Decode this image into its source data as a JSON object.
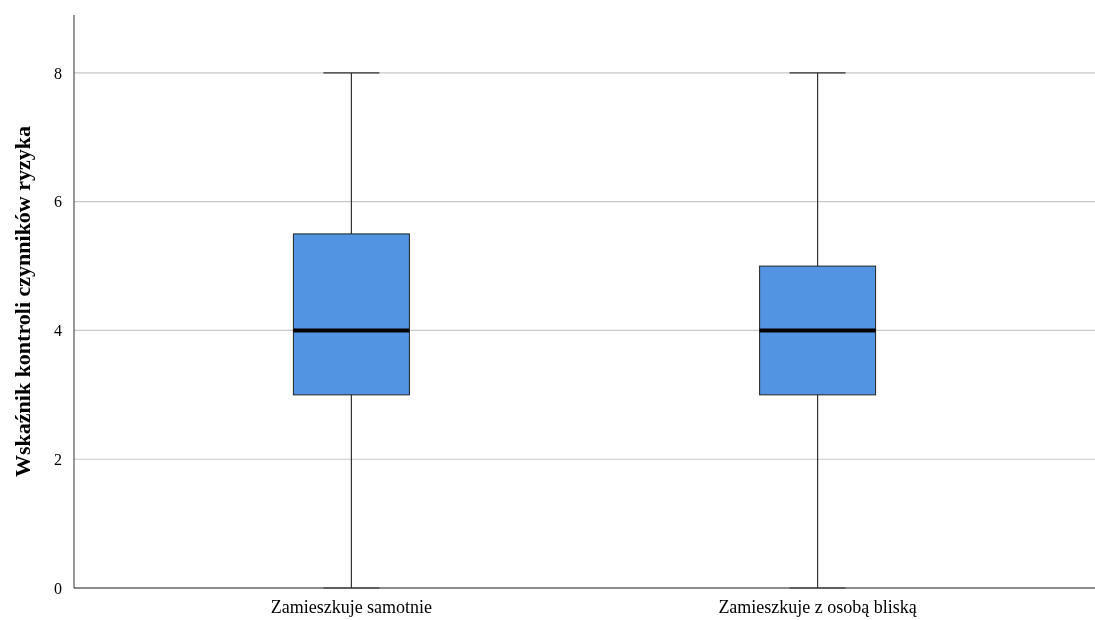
{
  "chart_data": {
    "type": "box",
    "ylabel": "Wskaźnik kontroli czynników ryzyka",
    "categories": [
      "Zamieszkuje samotnie",
      "Zamieszkuje z osobą bliską"
    ],
    "boxes": [
      {
        "low": 0,
        "q1": 3,
        "median": 4,
        "q3": 5.5,
        "high": 8
      },
      {
        "low": 0,
        "q1": 3,
        "median": 4,
        "q3": 5,
        "high": 8
      }
    ],
    "color": "#5294e2",
    "ylim": [
      0,
      8.9
    ],
    "yticks": [
      0,
      2,
      4,
      6,
      8
    ],
    "grid": "y"
  }
}
